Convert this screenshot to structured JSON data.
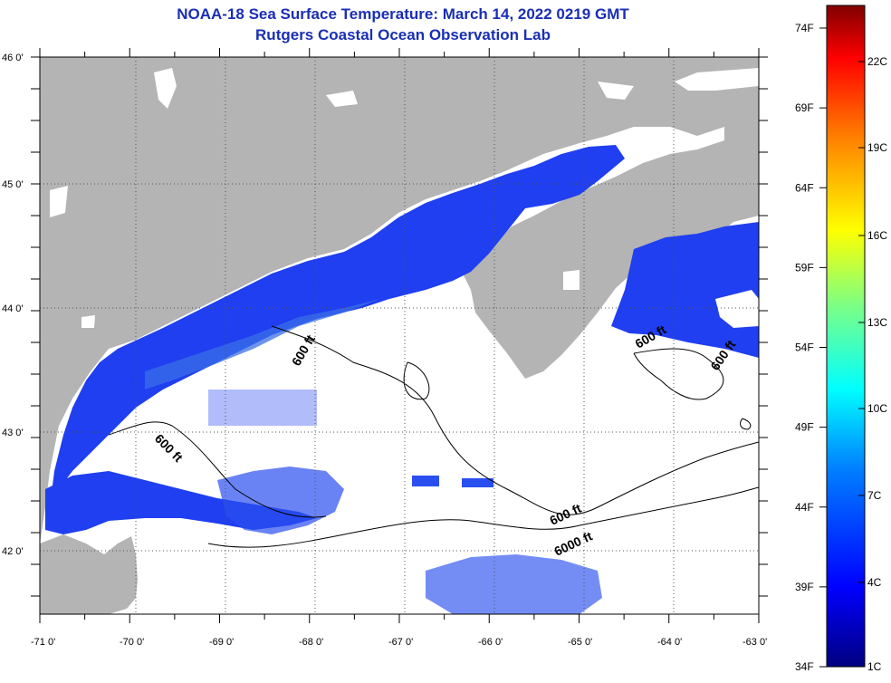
{
  "title": "NOAA-18 Sea Surface Temperature:  March 14, 2022 0219 GMT",
  "subtitle": "Rutgers Coastal Ocean Observation Lab",
  "lat_labels": [
    "46 0'",
    "45 0'",
    "44 0'",
    "43 0'",
    "42 0'"
  ],
  "lon_labels": [
    "-71 0'",
    "-70 0'",
    "-69 0'",
    "-68 0'",
    "-67 0'",
    "-66 0'",
    "-65 0'",
    "-64 0'",
    "-63 0'"
  ],
  "contours": {
    "c600_a": "600 ft",
    "c600_b": "600 ft",
    "c600_c": "600 ft",
    "c600_d": "600 ft",
    "c600_e": "600 ft",
    "c6000": "6000 ft"
  },
  "colorbar": {
    "fahrenheit": [
      "74F",
      "69F",
      "64F",
      "59F",
      "54F",
      "49F",
      "44F",
      "39F",
      "34F"
    ],
    "celsius": [
      "22C",
      "19C",
      "16C",
      "13C",
      "10C",
      "7C",
      "4C",
      "1C"
    ]
  },
  "colors": {
    "land": "#b4b4b4",
    "cloud": "#ffffff",
    "water_cold": "#1f3ff0",
    "water_mid": "#3b6fe8",
    "title": "#1a2fb5"
  }
}
